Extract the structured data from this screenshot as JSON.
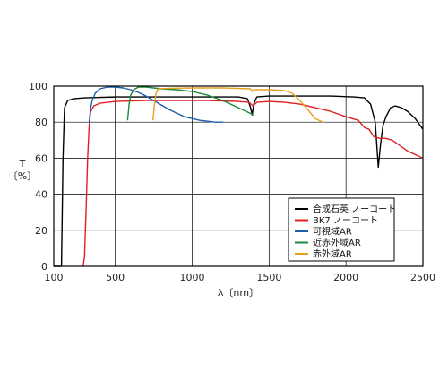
{
  "chart_data": {
    "type": "line",
    "title": "",
    "xlabel": "λ〔nm〕",
    "ylabel": "T\n〔%〕",
    "xlim": [
      100,
      2500
    ],
    "ylim": [
      0,
      100
    ],
    "xticks": [
      100,
      500,
      1000,
      1500,
      2000,
      2500
    ],
    "yticks": [
      0,
      20,
      40,
      60,
      80,
      100
    ],
    "grid": true,
    "legend_position": "lower-right",
    "series": [
      {
        "name": "合成石英 ノーコート",
        "color": "#000000",
        "points": [
          [
            100,
            0
          ],
          [
            150,
            0
          ],
          [
            160,
            60
          ],
          [
            170,
            88
          ],
          [
            190,
            92
          ],
          [
            230,
            93
          ],
          [
            300,
            93.5
          ],
          [
            500,
            94
          ],
          [
            700,
            94
          ],
          [
            900,
            94
          ],
          [
            1100,
            94
          ],
          [
            1300,
            94
          ],
          [
            1360,
            93
          ],
          [
            1380,
            88
          ],
          [
            1390,
            84
          ],
          [
            1400,
            90
          ],
          [
            1420,
            94
          ],
          [
            1500,
            94.5
          ],
          [
            1700,
            94.5
          ],
          [
            1900,
            94.5
          ],
          [
            2050,
            94
          ],
          [
            2120,
            93.5
          ],
          [
            2160,
            90
          ],
          [
            2190,
            80
          ],
          [
            2210,
            55
          ],
          [
            2225,
            68
          ],
          [
            2240,
            78
          ],
          [
            2260,
            83
          ],
          [
            2290,
            88
          ],
          [
            2320,
            89
          ],
          [
            2360,
            88
          ],
          [
            2400,
            86
          ],
          [
            2450,
            82
          ],
          [
            2500,
            76
          ]
        ]
      },
      {
        "name": "BK7 ノーコート",
        "color": "#e02020",
        "points": [
          [
            290,
            0
          ],
          [
            300,
            5
          ],
          [
            310,
            30
          ],
          [
            320,
            60
          ],
          [
            330,
            78
          ],
          [
            340,
            86
          ],
          [
            360,
            89
          ],
          [
            400,
            90.5
          ],
          [
            500,
            91.5
          ],
          [
            700,
            92
          ],
          [
            900,
            92
          ],
          [
            1100,
            92
          ],
          [
            1300,
            91.5
          ],
          [
            1370,
            91
          ],
          [
            1395,
            89
          ],
          [
            1420,
            91
          ],
          [
            1500,
            91.5
          ],
          [
            1600,
            91
          ],
          [
            1700,
            90
          ],
          [
            1800,
            88
          ],
          [
            1900,
            86
          ],
          [
            2000,
            83
          ],
          [
            2080,
            81
          ],
          [
            2120,
            77
          ],
          [
            2150,
            76
          ],
          [
            2180,
            72
          ],
          [
            2220,
            71
          ],
          [
            2260,
            71
          ],
          [
            2300,
            70
          ],
          [
            2350,
            67
          ],
          [
            2400,
            64
          ],
          [
            2450,
            62
          ],
          [
            2500,
            60
          ]
        ]
      },
      {
        "name": "可視域AR",
        "color": "#1a5fa8",
        "points": [
          [
            330,
            80
          ],
          [
            340,
            88
          ],
          [
            350,
            92
          ],
          [
            370,
            96
          ],
          [
            400,
            98.5
          ],
          [
            450,
            99.5
          ],
          [
            500,
            99.5
          ],
          [
            550,
            99
          ],
          [
            600,
            98
          ],
          [
            650,
            96.5
          ],
          [
            700,
            94.5
          ],
          [
            750,
            92
          ],
          [
            800,
            89.5
          ],
          [
            850,
            87
          ],
          [
            900,
            85
          ],
          [
            950,
            83
          ],
          [
            1000,
            82
          ],
          [
            1050,
            81
          ],
          [
            1100,
            80.5
          ],
          [
            1150,
            80
          ],
          [
            1200,
            80
          ]
        ]
      },
      {
        "name": "近赤外域AR",
        "color": "#1a8a3a",
        "points": [
          [
            580,
            81
          ],
          [
            590,
            90
          ],
          [
            600,
            95
          ],
          [
            620,
            98
          ],
          [
            650,
            99.5
          ],
          [
            700,
            99.5
          ],
          [
            750,
            99
          ],
          [
            800,
            98.5
          ],
          [
            900,
            98
          ],
          [
            1000,
            97
          ],
          [
            1100,
            95
          ],
          [
            1200,
            92
          ],
          [
            1300,
            88
          ],
          [
            1350,
            86
          ],
          [
            1400,
            84
          ]
        ]
      },
      {
        "name": "赤外域AR",
        "color": "#e6a020",
        "points": [
          [
            745,
            81
          ],
          [
            755,
            90
          ],
          [
            765,
            96
          ],
          [
            780,
            98.5
          ],
          [
            850,
            98.8
          ],
          [
            1000,
            99
          ],
          [
            1200,
            99
          ],
          [
            1380,
            98.5
          ],
          [
            1390,
            97
          ],
          [
            1400,
            98
          ],
          [
            1500,
            98
          ],
          [
            1600,
            97.5
          ],
          [
            1650,
            96
          ],
          [
            1700,
            92
          ],
          [
            1750,
            87
          ],
          [
            1800,
            82
          ],
          [
            1850,
            80
          ]
        ]
      }
    ]
  }
}
